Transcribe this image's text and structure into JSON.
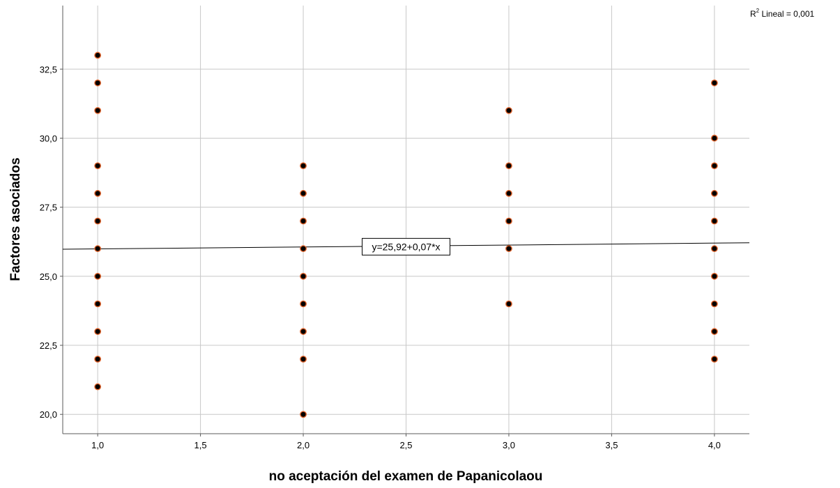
{
  "chart_data": {
    "type": "scatter",
    "title": "",
    "xlabel": "no aceptación del examen de Papanicolaou",
    "ylabel": "Factores asociados",
    "xlim": [
      0.83,
      4.17
    ],
    "ylim": [
      19.3,
      34.8
    ],
    "x_ticks": [
      1.0,
      1.5,
      2.0,
      2.5,
      3.0,
      3.5,
      4.0
    ],
    "x_tick_labels": [
      "1,0",
      "1,5",
      "2,0",
      "2,5",
      "3,0",
      "3,5",
      "4,0"
    ],
    "y_ticks": [
      20.0,
      22.5,
      25.0,
      27.5,
      30.0,
      32.5
    ],
    "y_tick_labels": [
      "20,0",
      "22,5",
      "25,0",
      "27,5",
      "30,0",
      "32,5"
    ],
    "grid": true,
    "points": [
      {
        "x": 1,
        "y": 33
      },
      {
        "x": 1,
        "y": 32
      },
      {
        "x": 1,
        "y": 31
      },
      {
        "x": 1,
        "y": 29
      },
      {
        "x": 1,
        "y": 28
      },
      {
        "x": 1,
        "y": 27
      },
      {
        "x": 1,
        "y": 26
      },
      {
        "x": 1,
        "y": 25
      },
      {
        "x": 1,
        "y": 24
      },
      {
        "x": 1,
        "y": 23
      },
      {
        "x": 1,
        "y": 22
      },
      {
        "x": 1,
        "y": 21
      },
      {
        "x": 2,
        "y": 29
      },
      {
        "x": 2,
        "y": 28
      },
      {
        "x": 2,
        "y": 27
      },
      {
        "x": 2,
        "y": 26
      },
      {
        "x": 2,
        "y": 25
      },
      {
        "x": 2,
        "y": 24
      },
      {
        "x": 2,
        "y": 23
      },
      {
        "x": 2,
        "y": 22
      },
      {
        "x": 2,
        "y": 20
      },
      {
        "x": 3,
        "y": 31
      },
      {
        "x": 3,
        "y": 29
      },
      {
        "x": 3,
        "y": 28
      },
      {
        "x": 3,
        "y": 27
      },
      {
        "x": 3,
        "y": 26
      },
      {
        "x": 3,
        "y": 24
      },
      {
        "x": 4,
        "y": 32
      },
      {
        "x": 4,
        "y": 30
      },
      {
        "x": 4,
        "y": 29
      },
      {
        "x": 4,
        "y": 28
      },
      {
        "x": 4,
        "y": 27
      },
      {
        "x": 4,
        "y": 26
      },
      {
        "x": 4,
        "y": 25
      },
      {
        "x": 4,
        "y": 24
      },
      {
        "x": 4,
        "y": 23
      },
      {
        "x": 4,
        "y": 22
      }
    ],
    "fit_line": {
      "intercept": 25.92,
      "slope": 0.07,
      "equation_label": "y=25,92+0,07*x",
      "r2_prefix": "R",
      "r2_sup": "2",
      "r2_text": " Lineal = 0,001"
    },
    "colors": {
      "marker_fill": "#000000",
      "marker_edge": "#e0622a",
      "grid": "#c8c8c8",
      "axis": "#5a5a5a",
      "fit_line": "#000000"
    }
  }
}
